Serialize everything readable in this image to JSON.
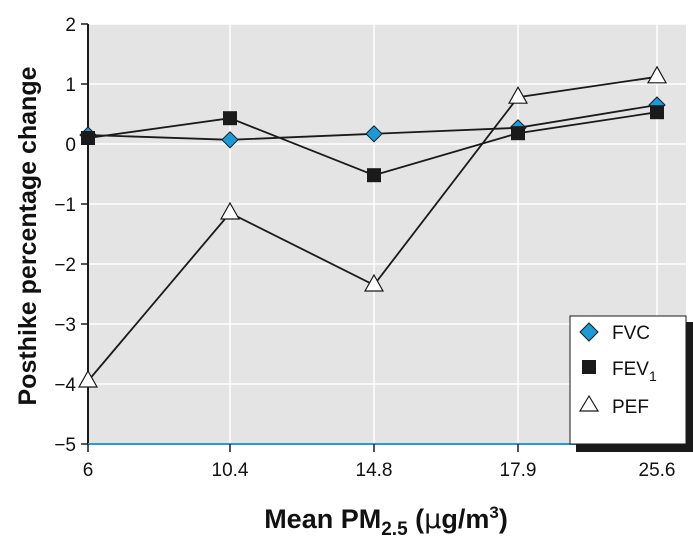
{
  "chart_data": {
    "type": "line",
    "title": "",
    "xlabel": {
      "main": "Mean PM",
      "sub": "2.5",
      "unit_open": " (",
      "unit_mu": "µ",
      "unit_rest": "g/m",
      "unit_sup": "3",
      "unit_close": ")"
    },
    "ylabel": "Posthike percentage change",
    "categories": [
      "6",
      "10.4",
      "14.8",
      "17.9",
      "25.6"
    ],
    "ylim": [
      -5,
      2
    ],
    "yticks": [
      {
        "value": 2,
        "label": "2"
      },
      {
        "value": 1,
        "label": "1"
      },
      {
        "value": 0,
        "label": "0"
      },
      {
        "value": -1,
        "label": "−1"
      },
      {
        "value": -2,
        "label": "−2"
      },
      {
        "value": -3,
        "label": "−3"
      },
      {
        "value": -4,
        "label": "−4"
      },
      {
        "value": -5,
        "label": "−5"
      }
    ],
    "grid": true,
    "legend_position": "bottom-right",
    "series": [
      {
        "name": "FVC",
        "legend_main": "FVC",
        "legend_sub": "",
        "marker": "diamond",
        "color": "#1a9ad6",
        "values": [
          0.15,
          0.07,
          0.17,
          0.27,
          0.65
        ]
      },
      {
        "name": "FEV1",
        "legend_main": "FEV",
        "legend_sub": "1",
        "marker": "square",
        "color": "#1a1a1a",
        "values": [
          0.1,
          0.43,
          -0.52,
          0.18,
          0.53
        ]
      },
      {
        "name": "PEF",
        "legend_main": "PEF",
        "legend_sub": "",
        "marker": "triangle",
        "color": "#ffffff",
        "values": [
          -3.95,
          -1.15,
          -2.35,
          0.78,
          1.12
        ]
      }
    ]
  },
  "colors": {
    "plot_background": "#e4e4e4",
    "gridline": "#ffffff",
    "axis": "#1a1a1a",
    "baseline": "#2a9bd0"
  }
}
